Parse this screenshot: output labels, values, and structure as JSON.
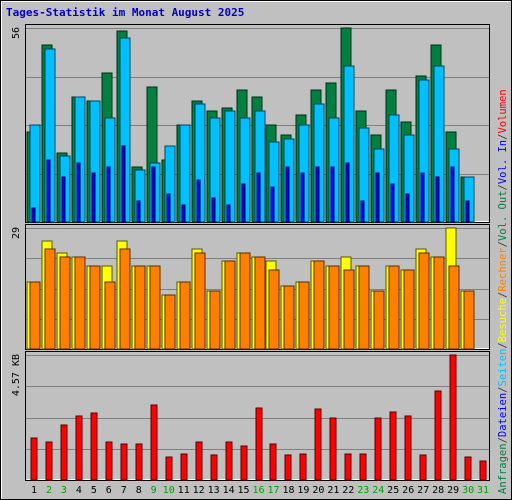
{
  "chart_data": {
    "type": "bar",
    "title": "Tages-Statistik im Monat August 2025",
    "categories": [
      "1",
      "2",
      "3",
      "4",
      "5",
      "6",
      "7",
      "8",
      "9",
      "10",
      "11",
      "12",
      "13",
      "14",
      "15",
      "16",
      "17",
      "18",
      "19",
      "20",
      "21",
      "22",
      "23",
      "24",
      "25",
      "26",
      "27",
      "28",
      "29",
      "30",
      "31"
    ],
    "weekend_days": [
      "2",
      "3",
      "9",
      "10",
      "16",
      "17",
      "23",
      "24",
      "30",
      "31"
    ],
    "panels": [
      {
        "name": "requests",
        "ymax_label": "56",
        "ymax": 56,
        "series": [
          {
            "name": "Anfragen",
            "color": "#008040",
            "values": [
              26,
              51,
              20,
              36,
              35,
              43,
              55,
              16,
              39,
              18,
              28,
              35,
              32,
              33,
              38,
              36,
              28,
              25,
              31,
              38,
              40,
              56,
              32,
              25,
              38,
              29,
              42,
              51,
              26,
              13,
              0
            ]
          },
          {
            "name": "Seiten",
            "color": "#00c0ff",
            "values": [
              28,
              50,
              19,
              36,
              35,
              30,
              53,
              15,
              17,
              22,
              28,
              34,
              30,
              32,
              30,
              32,
              23,
              24,
              28,
              34,
              30,
              45,
              27,
              21,
              31,
              25,
              41,
              45,
              21,
              13,
              0
            ]
          },
          {
            "name": "Dateien",
            "color": "#0000ff",
            "values": [
              4,
              18,
              13,
              17,
              14,
              16,
              22,
              6,
              16,
              8,
              5,
              12,
              7,
              5,
              11,
              14,
              10,
              16,
              14,
              16,
              16,
              17,
              6,
              14,
              11,
              8,
              14,
              13,
              16,
              6,
              0
            ]
          }
        ]
      },
      {
        "name": "visits",
        "ymax_label": "29",
        "ymax": 29,
        "series": [
          {
            "name": "Besuche",
            "color": "#ffff00",
            "values": [
              16,
              26,
              23,
              22,
              20,
              20,
              26,
              20,
              20,
              13,
              16,
              24,
              14,
              21,
              23,
              22,
              21,
              15,
              16,
              21,
              20,
              22,
              20,
              14,
              20,
              19,
              24,
              22,
              29,
              14,
              0
            ]
          },
          {
            "name": "Rechner",
            "color": "#ff8000",
            "values": [
              16,
              24,
              22,
              22,
              20,
              16,
              24,
              20,
              20,
              13,
              16,
              23,
              14,
              21,
              23,
              22,
              19,
              15,
              16,
              21,
              20,
              19,
              20,
              14,
              20,
              19,
              23,
              22,
              20,
              14,
              0
            ]
          }
        ]
      },
      {
        "name": "volume",
        "ymax_label": "4.57 KB",
        "ymax": 4.57,
        "series": [
          {
            "name": "Volumen",
            "color": "#ff0000",
            "values": [
              1.55,
              1.4,
              2.0,
              2.35,
              2.45,
              1.4,
              1.3,
              1.3,
              2.75,
              0.85,
              0.95,
              1.4,
              0.9,
              1.4,
              1.25,
              2.65,
              1.3,
              0.9,
              0.95,
              2.6,
              2.25,
              0.95,
              0.95,
              2.25,
              2.5,
              2.35,
              0.9,
              3.25,
              4.57,
              0.85,
              0.7
            ]
          }
        ]
      }
    ],
    "side_legend": [
      {
        "text": "Anfragen",
        "color": "#008040"
      },
      {
        "text": "/",
        "color": "#404040"
      },
      {
        "text": "Dateien",
        "color": "#0000ff"
      },
      {
        "text": "/",
        "color": "#404040"
      },
      {
        "text": "Seiten",
        "color": "#00c0ff"
      },
      {
        "text": "/",
        "color": "#404040"
      },
      {
        "text": "Besuche",
        "color": "#ffff00"
      },
      {
        "text": "/",
        "color": "#404040"
      },
      {
        "text": "Rechner",
        "color": "#ff8000"
      },
      {
        "text": "/",
        "color": "#404040"
      },
      {
        "text": "Vol. Out",
        "color": "#008040"
      },
      {
        "text": "/",
        "color": "#404040"
      },
      {
        "text": "Vol. In",
        "color": "#0000ff"
      },
      {
        "text": "/",
        "color": "#404040"
      },
      {
        "text": "Volumen",
        "color": "#ff0000"
      }
    ],
    "colors": {
      "background": "#c0c0c0",
      "title": "#0000c8",
      "weekday_label": "#000000",
      "weekend_label": "#00a000",
      "gridline": "#808080"
    }
  }
}
